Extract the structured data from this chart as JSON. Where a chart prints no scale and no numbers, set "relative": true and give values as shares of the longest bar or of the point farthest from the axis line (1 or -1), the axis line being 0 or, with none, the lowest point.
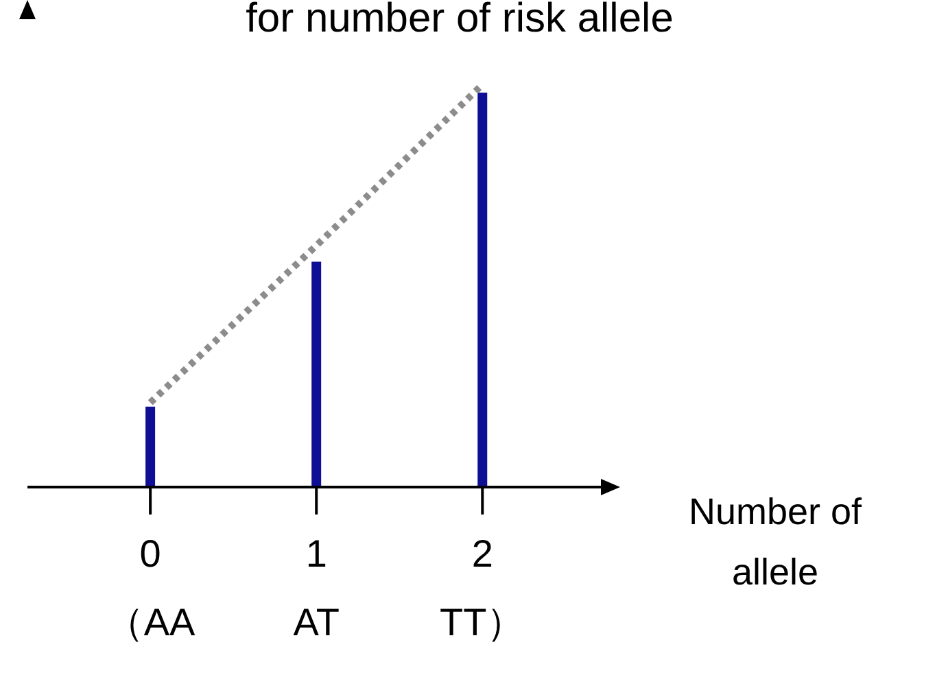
{
  "chart_data": {
    "type": "bar",
    "title": "for number of risk allele",
    "xlabel": "Number of\nallele",
    "categories": [
      "0\n（AA",
      "1\nAT",
      "2\nTT）"
    ],
    "relative": true,
    "legend": false,
    "series": [
      {
        "color": "#0f0f96",
        "values": [
          0.2,
          0.56,
          0.98
        ]
      },
      {
        "type": "line",
        "color": "#8c8c8c",
        "values": [
          0.21,
          0.6,
          1
        ],
        "line_style": "dotted",
        "marker": "none"
      }
    ]
  }
}
